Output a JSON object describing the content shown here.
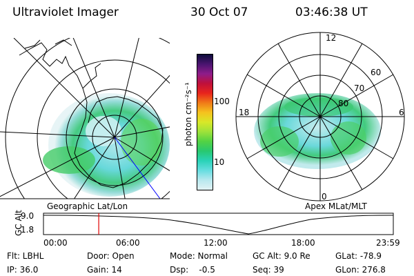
{
  "header": {
    "instrument": "Ultraviolet Imager",
    "date": "30 Oct 07",
    "time": "03:46:38 UT"
  },
  "left_map": {
    "caption": "Geographic Lat/Lon"
  },
  "right_map": {
    "caption": "Apex MLat/MLT",
    "mlt_labels": {
      "top": "12",
      "left": "18",
      "right": "6",
      "bottom": "0"
    },
    "lat_labels": [
      "60",
      "70",
      "80"
    ]
  },
  "colorbar": {
    "unit_label": "photon cm⁻²s⁻¹",
    "tick_labels": [
      "100",
      "10"
    ],
    "colors": [
      "#0d0d3a",
      "#4a1470",
      "#8e1c8a",
      "#c0103a",
      "#e8241c",
      "#f07a18",
      "#f5c21e",
      "#d8e828",
      "#9ee23a",
      "#52d244",
      "#28c870",
      "#2ad2b8",
      "#66dde0",
      "#b8e8ee",
      "#e2f2f4"
    ]
  },
  "timeline": {
    "y_label": "GC Alt",
    "y_ticks": [
      "9.0",
      "1.8"
    ],
    "x_ticks": [
      "00:00",
      "06:00",
      "12:00",
      "18:00",
      "23:59"
    ],
    "current_time_fraction": 0.158,
    "marker_color": "#e00000"
  },
  "info": {
    "flt": "Flt: LBHL",
    "ip": "IP: 36.0",
    "door": "Door: Open",
    "gain": "Gain: 14",
    "mode": "Mode: Normal",
    "dsp": "Dsp:    -0.5",
    "gc_alt": "GC Alt: 9.0 Re",
    "seq": "Seq: 39",
    "glat": "GLat: -78.9",
    "glon": "GLon: 276.8"
  }
}
